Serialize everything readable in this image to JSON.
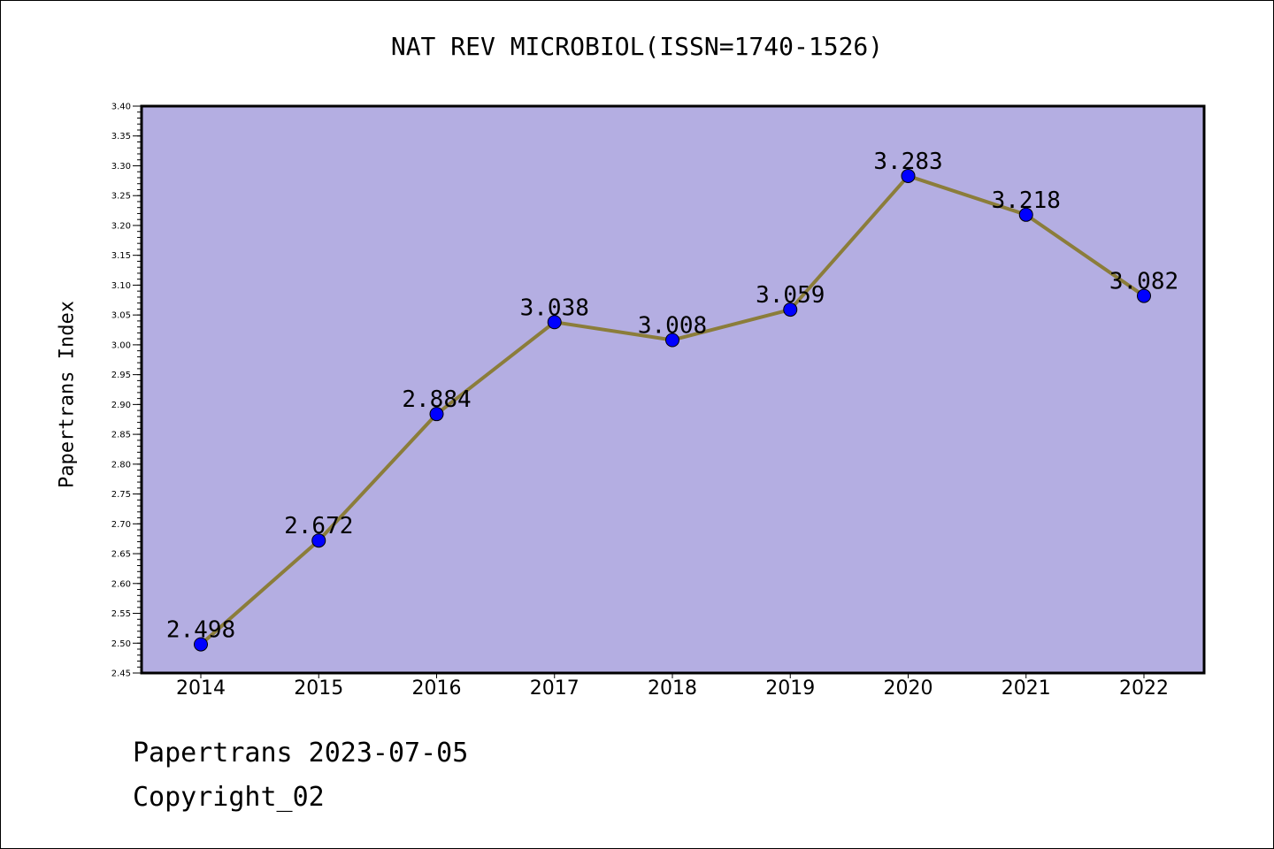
{
  "title": "NAT REV MICROBIOL(ISSN=1740-1526)",
  "footer": {
    "line1": "Papertrans 2023-07-05",
    "line2": "Copyright_02"
  },
  "colors": {
    "plot_background": "#b4aee2",
    "line": "#8b7d3a",
    "marker": "#0000ff"
  },
  "chart_data": {
    "type": "line",
    "title": "NAT REV MICROBIOL(ISSN=1740-1526)",
    "xlabel": "",
    "ylabel": "Papertrans Index",
    "categories": [
      "2014",
      "2015",
      "2016",
      "2017",
      "2018",
      "2019",
      "2020",
      "2021",
      "2022"
    ],
    "values": [
      2.498,
      2.672,
      2.884,
      3.038,
      3.008,
      3.059,
      3.283,
      3.218,
      3.082
    ],
    "data_labels": [
      "2.498",
      "2.672",
      "2.884",
      "3.038",
      "3.008",
      "3.059",
      "3.283",
      "3.218",
      "3.082"
    ],
    "ylim": [
      2.45,
      3.4
    ],
    "yticks": [
      "2.45",
      "2.50",
      "2.55",
      "2.60",
      "2.65",
      "2.70",
      "2.75",
      "2.80",
      "2.85",
      "2.90",
      "2.95",
      "3.00",
      "3.05",
      "3.10",
      "3.15",
      "3.20",
      "3.25",
      "3.30",
      "3.35",
      "3.40"
    ],
    "grid": false,
    "legend": "none"
  }
}
